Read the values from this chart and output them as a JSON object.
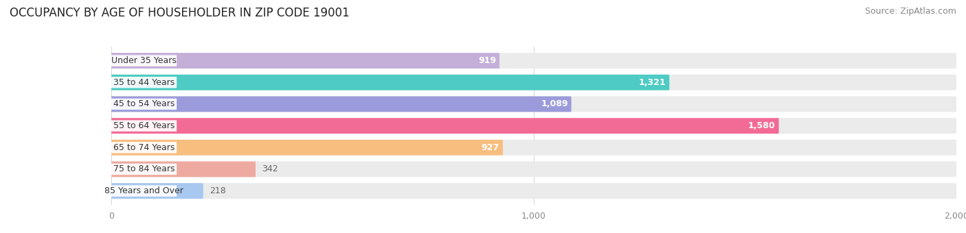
{
  "title": "OCCUPANCY BY AGE OF HOUSEHOLDER IN ZIP CODE 19001",
  "source": "Source: ZipAtlas.com",
  "categories": [
    "Under 35 Years",
    "35 to 44 Years",
    "45 to 54 Years",
    "55 to 64 Years",
    "65 to 74 Years",
    "75 to 84 Years",
    "85 Years and Over"
  ],
  "values": [
    919,
    1321,
    1089,
    1580,
    927,
    342,
    218
  ],
  "bar_colors": [
    "#c4afd8",
    "#4ecbc4",
    "#9b9bdb",
    "#f26b96",
    "#f7be80",
    "#eeaaa0",
    "#a8c8f0"
  ],
  "bar_bg_color": "#ebebeb",
  "xlim": [
    0,
    2000
  ],
  "xticks": [
    0,
    1000,
    2000
  ],
  "bar_height": 0.72,
  "title_fontsize": 12,
  "source_fontsize": 9,
  "label_fontsize": 9,
  "value_fontsize": 9,
  "value_inside_threshold": 400,
  "background_color": "#ffffff",
  "grid_color": "#cccccc",
  "tick_color": "#888888",
  "label_text_color": "#333333",
  "value_color_inside": "#ffffff",
  "value_color_outside": "#666666"
}
